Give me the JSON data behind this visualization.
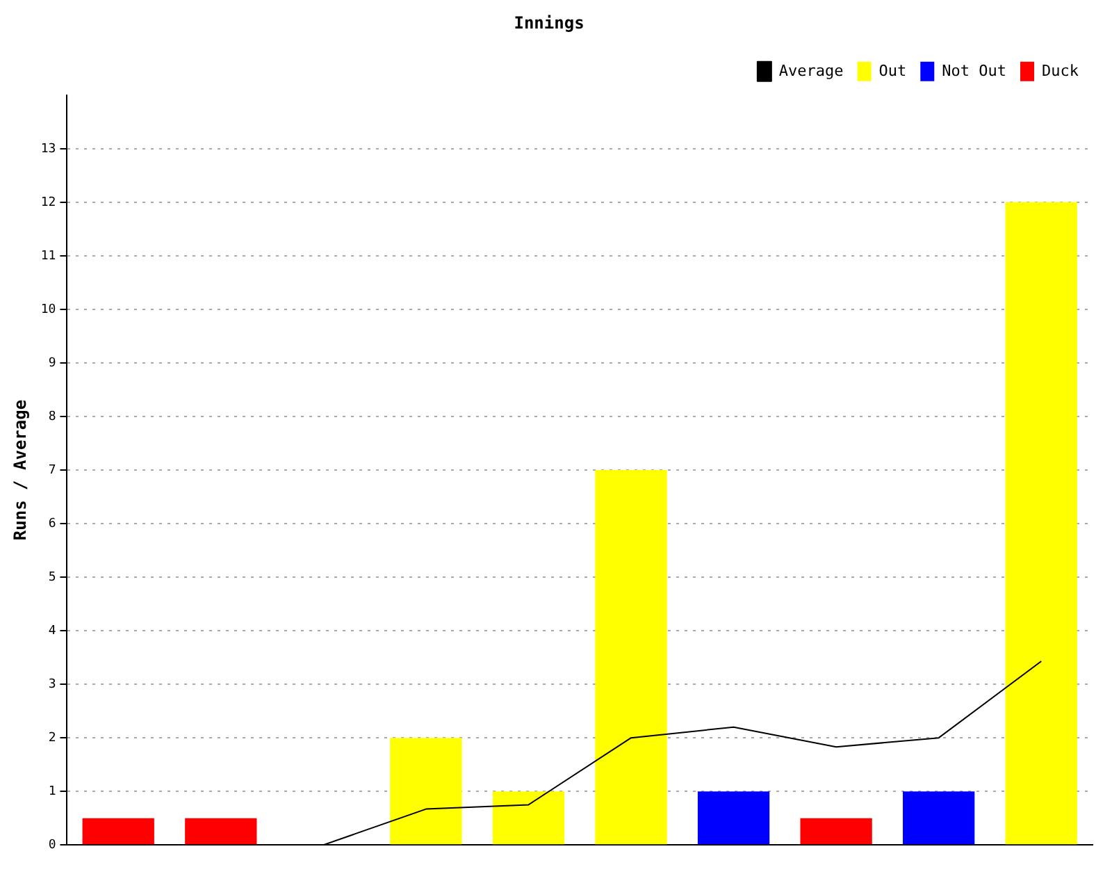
{
  "chart_data": {
    "type": "bar",
    "title": "Innings",
    "ylabel": "Runs / Average",
    "categories": [
      null,
      null,
      null,
      null,
      null,
      null,
      null,
      null,
      null,
      null
    ],
    "series": [
      {
        "name": "Average",
        "type": "line",
        "color": "#000000",
        "values": [
          null,
          null,
          0,
          0.67,
          0.75,
          2,
          2.2,
          1.83,
          2,
          3.43
        ]
      },
      {
        "name": "Out",
        "color": "#ffff00",
        "values": [
          null,
          null,
          null,
          2,
          1,
          7,
          null,
          null,
          null,
          12
        ]
      },
      {
        "name": "Not Out",
        "color": "#0000ff",
        "values": [
          null,
          null,
          null,
          null,
          null,
          null,
          1,
          null,
          1,
          null
        ]
      },
      {
        "name": "Duck",
        "color": "#ff0000",
        "values": [
          0.5,
          0.5,
          null,
          null,
          null,
          null,
          null,
          0.5,
          null,
          null
        ]
      }
    ],
    "ylim": [
      0,
      14
    ],
    "yticks": [
      0,
      1,
      2,
      3,
      4,
      5,
      6,
      7,
      8,
      9,
      10,
      11,
      12,
      13
    ],
    "grid": "y",
    "legend": "top right",
    "marker": "none"
  }
}
